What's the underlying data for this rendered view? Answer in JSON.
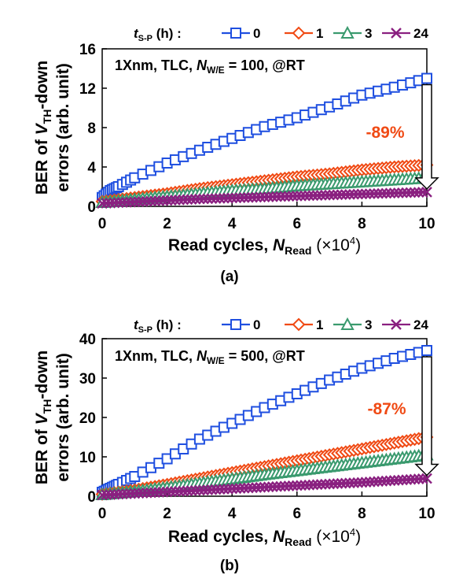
{
  "chart_data": [
    {
      "type": "line",
      "panel_label": "(a)",
      "legend": {
        "title_main": "t",
        "title_sub": "S-P",
        "title_unit": " (h) :",
        "entries": [
          "0",
          "1",
          "3",
          "24"
        ]
      },
      "annotation": {
        "main": "1Xnm, TLC, ",
        "n_main": "N",
        "n_sub": "W/E",
        "suffix": " = 100, @RT"
      },
      "reduction_label": "-89%",
      "xlabel": {
        "main": "Read cycles, ",
        "n_main": "N",
        "n_sub": "Read",
        "suffix_main": " (×10",
        "suffix_sup": "4",
        "suffix_end": ")"
      },
      "ylabel": {
        "line1_a": "BER of ",
        "line1_v": "V",
        "line1_sub": "TH",
        "line1_b": "-down",
        "line2": "errors (arb. unit)"
      },
      "xlim": [
        0,
        10
      ],
      "ylim": [
        0,
        16
      ],
      "xticks": [
        "0",
        "2",
        "4",
        "6",
        "8",
        "10"
      ],
      "yticks": [
        "0",
        "4",
        "8",
        "12",
        "16"
      ],
      "series": [
        {
          "name": "0",
          "marker": "square",
          "color": "#1f4fe0",
          "x": [
            0,
            0.25,
            0.5,
            1,
            2,
            3,
            4,
            5,
            6,
            7,
            8,
            9,
            10
          ],
          "y": [
            0.9,
            1.6,
            2.0,
            2.9,
            4.4,
            5.7,
            6.9,
            8.1,
            9.0,
            10.1,
            11.3,
            12.1,
            13.0
          ]
        },
        {
          "name": "1",
          "marker": "diamond",
          "color": "#f04a14",
          "x": [
            0,
            1,
            2,
            3,
            4,
            5,
            6,
            7,
            8,
            9,
            10
          ],
          "y": [
            0.5,
            0.9,
            1.3,
            1.8,
            2.2,
            2.6,
            3.0,
            3.3,
            3.7,
            4.0,
            4.2
          ]
        },
        {
          "name": "3",
          "marker": "triangle",
          "color": "#3a9a6e",
          "x": [
            0,
            1,
            2,
            3,
            4,
            5,
            6,
            7,
            8,
            9,
            10
          ],
          "y": [
            0.4,
            0.7,
            1.0,
            1.3,
            1.6,
            1.8,
            2.1,
            2.3,
            2.5,
            2.7,
            2.9
          ]
        },
        {
          "name": "24",
          "marker": "x",
          "color": "#8a2080",
          "x": [
            0,
            1,
            2,
            3,
            4,
            5,
            6,
            7,
            8,
            9,
            10
          ],
          "y": [
            0.3,
            0.45,
            0.6,
            0.75,
            0.85,
            0.95,
            1.05,
            1.15,
            1.25,
            1.35,
            1.45
          ]
        }
      ]
    },
    {
      "type": "line",
      "panel_label": "(b)",
      "legend": {
        "title_main": "t",
        "title_sub": "S-P",
        "title_unit": " (h) :",
        "entries": [
          "0",
          "1",
          "3",
          "24"
        ]
      },
      "annotation": {
        "main": "1Xnm, TLC, ",
        "n_main": "N",
        "n_sub": "W/E",
        "suffix": " = 500, @RT"
      },
      "reduction_label": "-87%",
      "xlabel": {
        "main": "Read cycles, ",
        "n_main": "N",
        "n_sub": "Read",
        "suffix_main": " (×10",
        "suffix_sup": "4",
        "suffix_end": ")"
      },
      "ylabel": {
        "line1_a": "BER of ",
        "line1_v": "V",
        "line1_sub": "TH",
        "line1_b": "-down",
        "line2": "errors (arb. unit)"
      },
      "xlim": [
        0,
        10
      ],
      "ylim": [
        0,
        40
      ],
      "xticks": [
        "0",
        "2",
        "4",
        "6",
        "8",
        "10"
      ],
      "yticks": [
        "0",
        "10",
        "20",
        "30",
        "40"
      ],
      "series": [
        {
          "name": "0",
          "marker": "square",
          "color": "#1f4fe0",
          "x": [
            0,
            0.25,
            0.5,
            1,
            2,
            3,
            4,
            5,
            6,
            7,
            8,
            9,
            10
          ],
          "y": [
            1.0,
            2.0,
            3.0,
            5.0,
            9.5,
            14.5,
            18.5,
            22.5,
            26.0,
            29.5,
            32.5,
            35.0,
            37.0
          ]
        },
        {
          "name": "1",
          "marker": "diamond",
          "color": "#f04a14",
          "x": [
            0,
            1,
            2,
            3,
            4,
            5,
            6,
            7,
            8,
            9,
            10
          ],
          "y": [
            0.5,
            1.6,
            3.0,
            4.5,
            6.0,
            7.5,
            9.0,
            10.5,
            12.0,
            13.5,
            15.0
          ]
        },
        {
          "name": "3",
          "marker": "triangle",
          "color": "#3a9a6e",
          "x": [
            0,
            1,
            2,
            3,
            4,
            5,
            6,
            7,
            8,
            9,
            10
          ],
          "y": [
            0.4,
            1.2,
            2.2,
            3.3,
            4.4,
            5.5,
            6.5,
            7.5,
            8.5,
            9.5,
            10.5
          ]
        },
        {
          "name": "24",
          "marker": "x",
          "color": "#8a2080",
          "x": [
            0,
            1,
            2,
            3,
            4,
            5,
            6,
            7,
            8,
            9,
            10
          ],
          "y": [
            0.3,
            0.7,
            1.1,
            1.5,
            1.9,
            2.3,
            2.7,
            3.1,
            3.5,
            4.0,
            4.5
          ]
        }
      ]
    }
  ]
}
